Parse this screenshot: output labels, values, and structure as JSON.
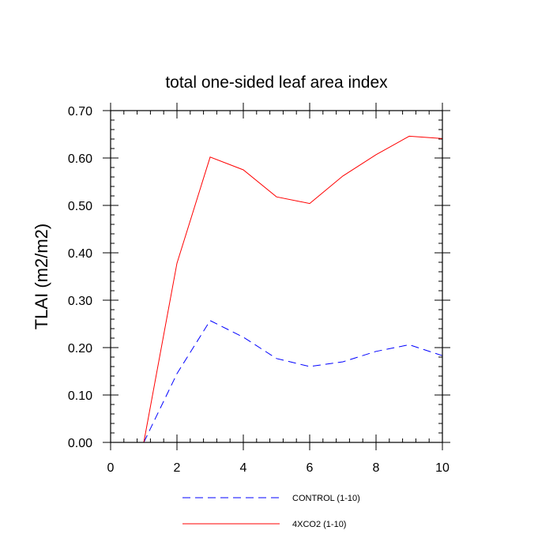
{
  "chart_data": {
    "type": "line",
    "title": "total one-sided leaf area index",
    "xlabel": "",
    "ylabel": "TLAI  (m2/m2)",
    "xlim": [
      0,
      10
    ],
    "ylim": [
      0,
      0.7
    ],
    "x_ticks": [
      0,
      2,
      4,
      6,
      8,
      10
    ],
    "x_tick_labels": [
      "0",
      "2",
      "4",
      "6",
      "8",
      "10"
    ],
    "y_ticks": [
      0,
      0.1,
      0.2,
      0.3,
      0.4,
      0.5,
      0.6,
      0.7
    ],
    "y_tick_labels": [
      "0.00",
      "0.10",
      "0.20",
      "0.30",
      "0.40",
      "0.50",
      "0.60",
      "0.70"
    ],
    "grid": false,
    "legend_position": "bottom",
    "series": [
      {
        "name": "CONTROL (1-10)",
        "color": "#0000ff",
        "style": "dashed",
        "x": [
          1,
          2,
          3,
          4,
          5,
          6,
          7,
          8,
          9,
          10
        ],
        "y": [
          0.0,
          0.145,
          0.257,
          0.222,
          0.177,
          0.16,
          0.17,
          0.192,
          0.206,
          0.183
        ]
      },
      {
        "name": "4XCO2 (1-10)",
        "color": "#ff0000",
        "style": "solid",
        "x": [
          1,
          2,
          3,
          4,
          5,
          6,
          7,
          8,
          9,
          10
        ],
        "y": [
          0.0,
          0.378,
          0.602,
          0.575,
          0.518,
          0.504,
          0.562,
          0.607,
          0.646,
          0.641
        ]
      }
    ]
  }
}
